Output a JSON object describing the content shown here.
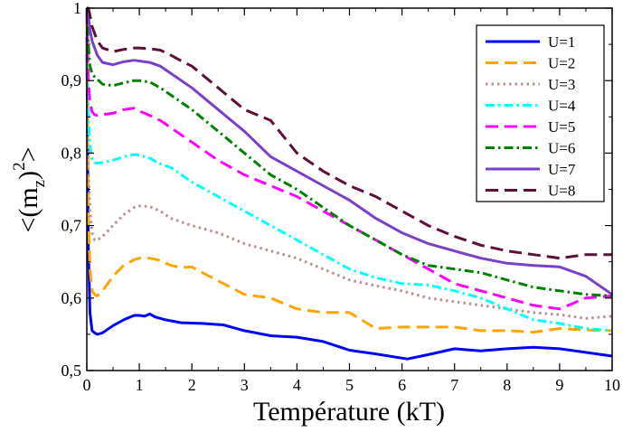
{
  "chart_data": {
    "type": "line",
    "title": "",
    "xlabel": "Température (kT)",
    "ylabel_parts": {
      "open": "<(m",
      "sub": "z",
      "close": ")",
      "sup": "2",
      "end": ">"
    },
    "xlim": [
      0,
      10
    ],
    "ylim": [
      0.5,
      1.0
    ],
    "x_ticks": [
      {
        "value": 0,
        "label": "0"
      },
      {
        "value": 1,
        "label": "1"
      },
      {
        "value": 2,
        "label": "2"
      },
      {
        "value": 3,
        "label": "3"
      },
      {
        "value": 4,
        "label": "4"
      },
      {
        "value": 5,
        "label": "5"
      },
      {
        "value": 6,
        "label": "6"
      },
      {
        "value": 7,
        "label": "7"
      },
      {
        "value": 8,
        "label": "8"
      },
      {
        "value": 9,
        "label": "9"
      },
      {
        "value": 10,
        "label": "10"
      }
    ],
    "y_ticks": [
      {
        "value": 0.5,
        "label": "0,5"
      },
      {
        "value": 0.6,
        "label": "0,6"
      },
      {
        "value": 0.7,
        "label": "0,7"
      },
      {
        "value": 0.8,
        "label": "0,8"
      },
      {
        "value": 0.9,
        "label": "0,9"
      },
      {
        "value": 1.0,
        "label": "1"
      }
    ],
    "grid": false,
    "legend_position": "top-right",
    "series": [
      {
        "name": "U=1",
        "color": "#0000ff",
        "dash": "solid",
        "x": [
          0,
          0.03,
          0.06,
          0.1,
          0.15,
          0.2,
          0.3,
          0.5,
          0.7,
          0.9,
          1.0,
          1.1,
          1.2,
          1.3,
          1.5,
          1.8,
          2.2,
          2.6,
          3.0,
          3.5,
          4.0,
          4.5,
          5.0,
          5.5,
          6.1,
          6.5,
          7.0,
          7.5,
          8.0,
          8.5,
          9.0,
          9.5,
          10.0
        ],
        "y": [
          0.96,
          0.67,
          0.58,
          0.555,
          0.552,
          0.55,
          0.552,
          0.562,
          0.57,
          0.576,
          0.576,
          0.575,
          0.578,
          0.574,
          0.57,
          0.566,
          0.565,
          0.563,
          0.555,
          0.548,
          0.546,
          0.54,
          0.528,
          0.523,
          0.516,
          0.522,
          0.53,
          0.527,
          0.53,
          0.532,
          0.53,
          0.525,
          0.52
        ]
      },
      {
        "name": "U=2",
        "color": "#ffa500",
        "dash": "long-dash",
        "x": [
          0,
          0.03,
          0.06,
          0.1,
          0.15,
          0.2,
          0.3,
          0.5,
          0.7,
          0.9,
          1.0,
          1.2,
          1.4,
          1.6,
          1.8,
          2.0,
          2.2,
          2.6,
          3.0,
          3.5,
          4.0,
          4.5,
          5.0,
          5.5,
          6.0,
          6.5,
          7.0,
          7.5,
          8.0,
          8.5,
          9.0,
          9.5,
          10.0
        ],
        "y": [
          0.98,
          0.72,
          0.64,
          0.61,
          0.605,
          0.603,
          0.61,
          0.63,
          0.645,
          0.653,
          0.655,
          0.655,
          0.652,
          0.645,
          0.642,
          0.643,
          0.635,
          0.62,
          0.605,
          0.6,
          0.585,
          0.58,
          0.58,
          0.558,
          0.56,
          0.56,
          0.56,
          0.555,
          0.555,
          0.553,
          0.558,
          0.556,
          0.555
        ]
      },
      {
        "name": "U=3",
        "color": "#bc8f8f",
        "dash": "dotted",
        "x": [
          0,
          0.03,
          0.06,
          0.1,
          0.15,
          0.2,
          0.3,
          0.5,
          0.7,
          0.9,
          1.0,
          1.2,
          1.4,
          1.6,
          1.8,
          2.0,
          2.5,
          3.0,
          3.5,
          4.0,
          4.5,
          5.0,
          5.5,
          6.0,
          6.5,
          7.0,
          7.5,
          8.0,
          8.5,
          9.0,
          9.5,
          10.0
        ],
        "y": [
          0.99,
          0.78,
          0.72,
          0.69,
          0.68,
          0.68,
          0.685,
          0.7,
          0.715,
          0.725,
          0.727,
          0.726,
          0.72,
          0.71,
          0.705,
          0.7,
          0.69,
          0.675,
          0.665,
          0.655,
          0.64,
          0.625,
          0.617,
          0.61,
          0.6,
          0.595,
          0.59,
          0.585,
          0.58,
          0.577,
          0.572,
          0.575
        ]
      },
      {
        "name": "U=4",
        "color": "#00ffff",
        "dash": "dash-dot",
        "x": [
          0,
          0.03,
          0.06,
          0.1,
          0.15,
          0.2,
          0.3,
          0.5,
          0.7,
          0.9,
          1.0,
          1.2,
          1.4,
          1.6,
          1.8,
          2.0,
          2.5,
          3.0,
          3.5,
          4.0,
          4.5,
          5.0,
          5.5,
          6.0,
          6.5,
          7.0,
          7.5,
          8.0,
          8.5,
          9.0,
          9.5,
          10.0
        ],
        "y": [
          0.99,
          0.85,
          0.81,
          0.79,
          0.787,
          0.786,
          0.787,
          0.79,
          0.795,
          0.798,
          0.797,
          0.793,
          0.785,
          0.78,
          0.77,
          0.76,
          0.74,
          0.72,
          0.7,
          0.68,
          0.66,
          0.64,
          0.628,
          0.62,
          0.618,
          0.61,
          0.6,
          0.585,
          0.57,
          0.565,
          0.558,
          0.555
        ]
      },
      {
        "name": "U=5",
        "color": "#ff00ff",
        "dash": "long-dash",
        "x": [
          0,
          0.03,
          0.06,
          0.1,
          0.15,
          0.2,
          0.3,
          0.5,
          0.7,
          0.9,
          1.0,
          1.2,
          1.4,
          1.6,
          1.8,
          2.0,
          2.5,
          3.0,
          3.5,
          4.0,
          4.5,
          5.0,
          5.5,
          6.0,
          6.5,
          7.0,
          7.5,
          8.0,
          8.5,
          9.0,
          9.5,
          10.0
        ],
        "y": [
          0.995,
          0.9,
          0.87,
          0.857,
          0.853,
          0.852,
          0.853,
          0.855,
          0.86,
          0.862,
          0.858,
          0.852,
          0.845,
          0.835,
          0.825,
          0.815,
          0.79,
          0.77,
          0.755,
          0.74,
          0.72,
          0.7,
          0.68,
          0.66,
          0.64,
          0.62,
          0.61,
          0.6,
          0.59,
          0.585,
          0.6,
          0.603
        ]
      },
      {
        "name": "U=6",
        "color": "#008000",
        "dash": "dash-dot",
        "x": [
          0,
          0.03,
          0.06,
          0.1,
          0.15,
          0.2,
          0.3,
          0.5,
          0.7,
          0.9,
          1.0,
          1.2,
          1.4,
          1.6,
          1.8,
          2.0,
          2.5,
          3.0,
          3.5,
          4.0,
          4.5,
          5.0,
          5.5,
          6.0,
          6.5,
          7.0,
          7.5,
          8.0,
          8.5,
          9.0,
          9.5,
          10.0
        ],
        "y": [
          1.0,
          0.95,
          0.92,
          0.91,
          0.905,
          0.902,
          0.895,
          0.893,
          0.897,
          0.9,
          0.9,
          0.898,
          0.89,
          0.88,
          0.87,
          0.86,
          0.83,
          0.8,
          0.77,
          0.75,
          0.725,
          0.7,
          0.68,
          0.66,
          0.645,
          0.64,
          0.635,
          0.625,
          0.615,
          0.61,
          0.605,
          0.603
        ]
      },
      {
        "name": "U=7",
        "color": "#7b40c8",
        "dash": "solid",
        "x": [
          0,
          0.03,
          0.06,
          0.1,
          0.15,
          0.2,
          0.3,
          0.5,
          0.7,
          0.9,
          1.0,
          1.2,
          1.4,
          1.6,
          1.8,
          2.0,
          2.5,
          3.0,
          3.5,
          4.0,
          4.5,
          5.0,
          5.5,
          6.0,
          6.5,
          7.0,
          7.5,
          8.0,
          8.5,
          9.0,
          9.5,
          10.0
        ],
        "y": [
          1.0,
          0.99,
          0.97,
          0.955,
          0.945,
          0.935,
          0.925,
          0.922,
          0.926,
          0.928,
          0.927,
          0.925,
          0.92,
          0.91,
          0.9,
          0.89,
          0.86,
          0.83,
          0.795,
          0.775,
          0.755,
          0.735,
          0.71,
          0.69,
          0.675,
          0.665,
          0.655,
          0.648,
          0.645,
          0.643,
          0.63,
          0.605
        ]
      },
      {
        "name": "U=8",
        "color": "#5c0f3a",
        "dash": "long-dash",
        "x": [
          0,
          0.03,
          0.06,
          0.1,
          0.15,
          0.2,
          0.3,
          0.5,
          0.7,
          0.9,
          1.0,
          1.2,
          1.4,
          1.6,
          1.8,
          2.0,
          2.5,
          3.0,
          3.5,
          4.0,
          4.5,
          5.0,
          5.5,
          6.0,
          6.5,
          7.0,
          7.5,
          8.0,
          8.5,
          9.0,
          9.5,
          10.0
        ],
        "y": [
          1.0,
          1.0,
          0.99,
          0.975,
          0.965,
          0.955,
          0.945,
          0.94,
          0.943,
          0.945,
          0.945,
          0.944,
          0.942,
          0.935,
          0.927,
          0.92,
          0.89,
          0.86,
          0.845,
          0.8,
          0.775,
          0.755,
          0.74,
          0.72,
          0.7,
          0.685,
          0.673,
          0.665,
          0.66,
          0.655,
          0.66,
          0.66
        ]
      }
    ]
  }
}
